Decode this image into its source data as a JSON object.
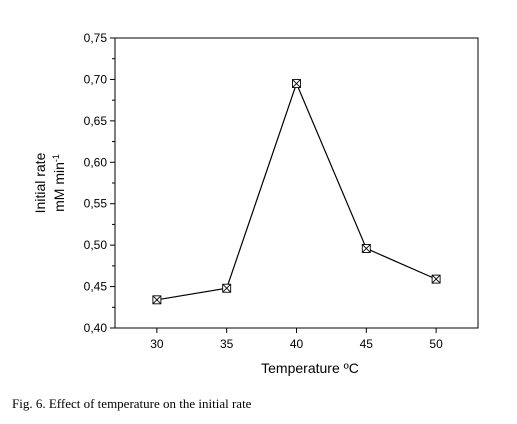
{
  "chart_data": {
    "type": "line",
    "x": [
      30,
      35,
      40,
      45,
      50
    ],
    "series": [
      {
        "values": [
          0.434,
          0.448,
          0.695,
          0.496,
          0.459
        ]
      }
    ],
    "xlabel": "Temperature ºC",
    "ylabel": "Initial rate",
    "ylabel_unit": "mM min",
    "ylabel_unit_sup": "-1",
    "xlim": [
      27,
      53
    ],
    "ylim": [
      0.4,
      0.75
    ],
    "xticks": [
      30,
      35,
      40,
      45,
      50
    ],
    "yticks": [
      0.4,
      0.45,
      0.5,
      0.55,
      0.6,
      0.65,
      0.7,
      0.75
    ],
    "ytick_labels": [
      "0,40",
      "0,45",
      "0,50",
      "0,55",
      "0,60",
      "0,65",
      "0,70",
      "0,75"
    ],
    "grid": false,
    "marker": "crossed-square"
  },
  "caption": "Fig. 6. Effect of temperature on the initial rate"
}
